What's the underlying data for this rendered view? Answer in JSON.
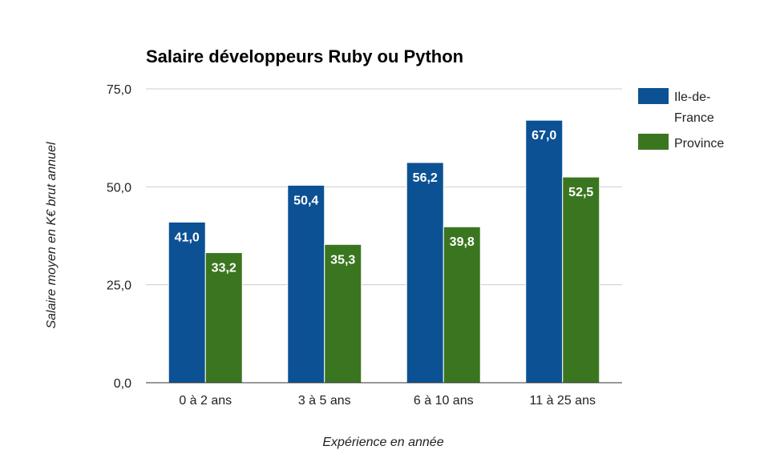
{
  "chart_data": {
    "type": "bar",
    "title": "Salaire développeurs Ruby ou Python",
    "xlabel": "Expérience en année",
    "ylabel": "Salaire moyen en K€ brut annuel",
    "categories": [
      "0 à 2 ans",
      "3 à 5 ans",
      "6 à 10 ans",
      "11 à 25 ans"
    ],
    "series": [
      {
        "name": "Ile-de-France",
        "name_lines": [
          "Ile-de-",
          "France"
        ],
        "color": "#0c5194",
        "values": [
          41.0,
          50.4,
          56.2,
          67.0
        ],
        "labels": [
          "41,0",
          "50,4",
          "56,2",
          "67,0"
        ]
      },
      {
        "name": "Province",
        "name_lines": [
          "Province"
        ],
        "color": "#3a761f",
        "values": [
          33.2,
          35.3,
          39.8,
          52.5
        ],
        "labels": [
          "33,2",
          "35,3",
          "39,8",
          "52,5"
        ]
      }
    ],
    "ylim": [
      0,
      75
    ],
    "yticks": [
      0,
      25,
      50,
      75
    ],
    "ytick_labels": [
      "0,0",
      "25,0",
      "50,0",
      "75,0"
    ],
    "grid": true,
    "legend_position": "right"
  }
}
